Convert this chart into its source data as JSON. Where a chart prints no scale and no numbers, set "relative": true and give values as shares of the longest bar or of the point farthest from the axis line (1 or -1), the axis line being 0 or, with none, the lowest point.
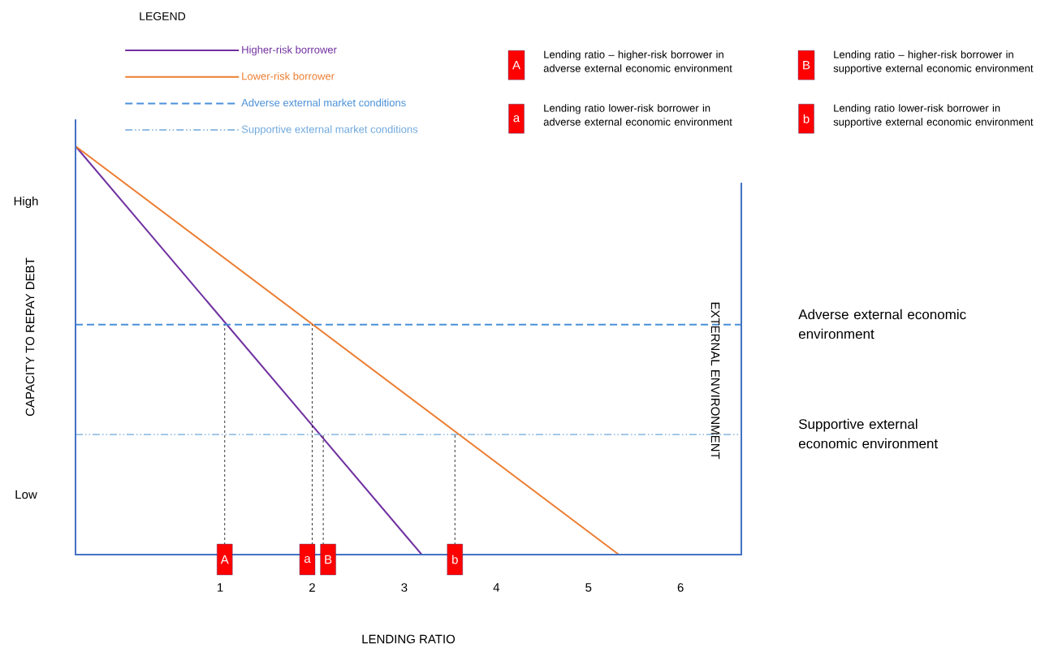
{
  "chart_data": {
    "type": "line",
    "relative": true,
    "legend_title": "LEGEND",
    "legend": "top",
    "xlabel": "LENDING RATIO",
    "ylabel": "CAPACITY TO REPAY DEBT",
    "y2label": "EXTERNAL ENVIRONMENT",
    "xlim": [
      -0.57,
      6.66
    ],
    "xticks": [
      1,
      2,
      3,
      4,
      5,
      6
    ],
    "series": [
      {
        "name": "Higher-risk borrower",
        "color": "#7030a0",
        "x": [
          -0.57,
          3.19
        ],
        "values": [
          1,
          0
        ],
        "line_style": "solid"
      },
      {
        "name": "Lower-risk borrower",
        "color": "#ed7d31",
        "x": [
          -0.57,
          5.33
        ],
        "values": [
          1,
          0
        ],
        "line_style": "solid"
      },
      {
        "name": "Adverse external market conditions",
        "color": "#4a90d9",
        "x": [
          -0.57,
          6.66
        ],
        "values": [
          0.563,
          0.563
        ],
        "line_style": "dashed"
      },
      {
        "name": "Supportive external market conditions",
        "color": "#6fa8dc",
        "x": [
          -0.57,
          6.66
        ],
        "values": [
          0.294,
          0.294
        ],
        "line_style": "dashdot"
      }
    ],
    "annotations": [
      {
        "text": "A",
        "x": 1.05,
        "y": 0.563
      },
      {
        "text": "a",
        "x": 2.0,
        "y": 0.563
      },
      {
        "text": "B",
        "x": 2.12,
        "y": 0.294
      },
      {
        "text": "b",
        "x": 3.55,
        "y": 0.294
      },
      "High",
      "Low",
      "Adverse external economic environment",
      "Supportive external economic environment",
      "Lending ratio – higher-risk borrower in adverse external economic environment",
      "Lending ratio lower-risk borrower in adverse external economic environment",
      "Lending ratio – higher-risk borrower in supportive external economic environment",
      "Lending ratio lower-risk borrower in supportive external economic environment"
    ]
  }
}
